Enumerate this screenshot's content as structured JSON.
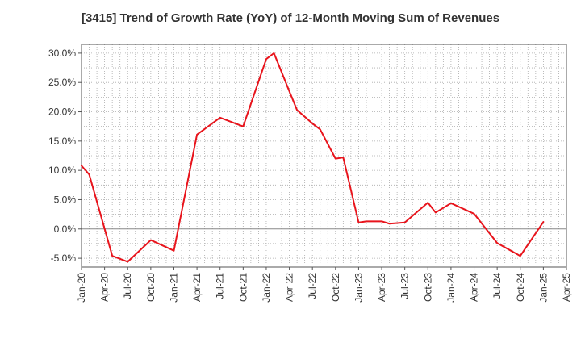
{
  "chart_data": {
    "type": "line",
    "title": "[3415]  Trend of Growth Rate (YoY) of 12-Month Moving Sum of Revenues",
    "xlabel": "",
    "ylabel": "",
    "ylim": [
      -6.5,
      31.5
    ],
    "grid": true,
    "legend": "none",
    "y_ticks": [
      -5,
      0,
      5,
      10,
      15,
      20,
      25,
      30
    ],
    "y_tick_labels": [
      "-5.0%",
      "0.0%",
      "5.0%",
      "10.0%",
      "15.0%",
      "20.0%",
      "25.0%",
      "30.0%"
    ],
    "x_ticks": [
      "Jan-20",
      "Apr-20",
      "Jul-20",
      "Oct-20",
      "Jan-21",
      "Apr-21",
      "Jul-21",
      "Oct-21",
      "Jan-22",
      "Apr-22",
      "Jul-22",
      "Oct-22",
      "Jan-23",
      "Apr-23",
      "Jul-23",
      "Oct-23",
      "Jan-24",
      "Apr-24",
      "Jul-24",
      "Oct-24",
      "Jan-25",
      "Apr-25"
    ],
    "series": [
      {
        "color": "#e8141c",
        "x": [
          "Jan-20",
          "Feb-20",
          "May-20",
          "Jul-20",
          "Oct-20",
          "Jan-21",
          "Apr-21",
          "Jul-21",
          "Oct-21",
          "Jan-22",
          "Feb-22",
          "Apr-22",
          "May-22",
          "Jul-22",
          "Aug-22",
          "Oct-22",
          "Nov-22",
          "Jan-23",
          "Feb-23",
          "Apr-23",
          "May-23",
          "Jul-23",
          "Oct-23",
          "Nov-23",
          "Jan-24",
          "Apr-24",
          "Jul-24",
          "Oct-24",
          "Jan-25"
        ],
        "values": [
          10.8,
          9.3,
          -4.6,
          -5.6,
          -1.9,
          -3.7,
          16.1,
          19.0,
          17.5,
          29.0,
          30.0,
          23.5,
          20.3,
          18.0,
          17.0,
          12.0,
          12.2,
          1.1,
          1.3,
          1.3,
          0.9,
          1.1,
          4.5,
          2.8,
          4.4,
          2.6,
          -2.4,
          -4.6,
          1.2
        ]
      }
    ]
  }
}
